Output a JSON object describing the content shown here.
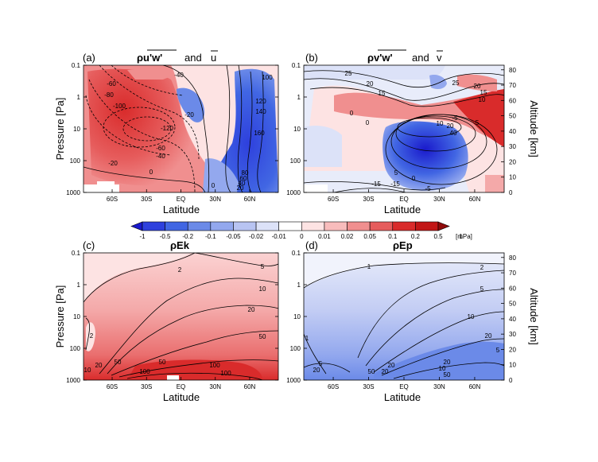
{
  "colorbar": {
    "ticks": [
      "-1",
      "-0.5",
      "-0.2",
      "-0.1",
      "-0.05",
      "-0.02",
      "-0.01",
      "0",
      "0.01",
      "0.02",
      "0.05",
      "0.1",
      "0.2",
      "0.5",
      "1"
    ],
    "unit": "[mPa]",
    "colors": [
      "#1a1acc",
      "#2e40dd",
      "#4166e3",
      "#6b8ae8",
      "#93a8ee",
      "#b8c4f2",
      "#dce2f8",
      "#ffffff",
      "#fde3e3",
      "#f8bcbc",
      "#f08f8f",
      "#e65c5c",
      "#d92b2b",
      "#c21616",
      "#8f0a0a"
    ]
  },
  "axes_common": {
    "xlabel": "Latitude",
    "ylabel": "Pressure [Pa]",
    "y2label": "Altitude [km]",
    "xticks": [
      "60S",
      "30S",
      "EQ",
      "30N",
      "60N"
    ],
    "yticks": [
      "0.1",
      "1",
      "10",
      "100",
      "1000"
    ],
    "y2ticks": [
      "80",
      "70",
      "60",
      "50",
      "40",
      "30",
      "20",
      "10",
      "0"
    ]
  },
  "chart_data": [
    {
      "type": "heatmap",
      "panel": "(a)",
      "title_main": "ρu'w'",
      "title_and": "and",
      "title_mean": "u",
      "shading": "rho u'w' [mPa]",
      "x": [
        "60S",
        "30S",
        "EQ",
        "30N",
        "60N"
      ],
      "ylim_pa": [
        1000,
        0.1
      ],
      "contour_labels": [
        "-40",
        "-60",
        "-80",
        "-100",
        "-20",
        "-120",
        "-60",
        "-40",
        "-20",
        "0",
        "0",
        "100",
        "120",
        "140",
        "160",
        "80",
        "60",
        "40",
        "20"
      ]
    },
    {
      "type": "heatmap",
      "panel": "(b)",
      "title_main": "ρv'w'",
      "title_and": "and",
      "title_mean": "v",
      "shading": "rho v'w' [mPa]",
      "x": [
        "60S",
        "30S",
        "EQ",
        "30N",
        "60N"
      ],
      "ylim_pa": [
        1000,
        0.1
      ],
      "contour_labels": [
        "25",
        "20",
        "15",
        "25",
        "20",
        "15",
        "10",
        "0",
        "0",
        "-5",
        "10",
        "20",
        "40",
        "5",
        "0",
        "5",
        "-15",
        "-15",
        "-5"
      ]
    },
    {
      "type": "heatmap",
      "panel": "(c)",
      "title_main": "ρEk",
      "shading": "rho Ek [mPa]",
      "x": [
        "60S",
        "30S",
        "EQ",
        "30N",
        "60N"
      ],
      "ylim_pa": [
        1000,
        0.1
      ],
      "contour_labels": [
        "2",
        "5",
        "10",
        "20",
        "50",
        "2",
        "20",
        "50",
        "50",
        "100",
        "100",
        "100",
        "10"
      ]
    },
    {
      "type": "heatmap",
      "panel": "(d)",
      "title_main": "ρEp",
      "shading": "rho Ep [mPa]",
      "x": [
        "60S",
        "30S",
        "EQ",
        "30N",
        "60N"
      ],
      "ylim_pa": [
        1000,
        0.1
      ],
      "contour_labels": [
        "1",
        "2",
        "5",
        "10",
        "20",
        "20",
        "5",
        "20",
        "50",
        "20",
        "10",
        "50",
        "20",
        "1",
        "5"
      ]
    }
  ]
}
